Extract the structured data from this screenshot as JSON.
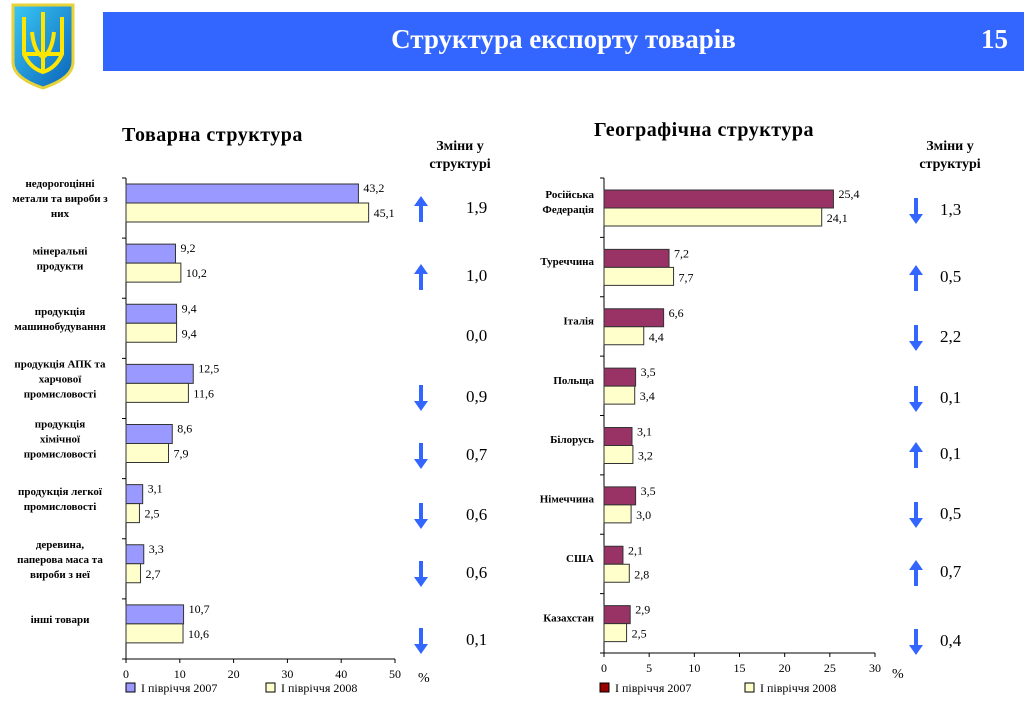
{
  "header": {
    "title": "Структура експорту товарів",
    "page_number": "15"
  },
  "change_header": "Зміни у структурі",
  "colors": {
    "banner": "#3366ff",
    "s2007_left": "#9999ff",
    "s2008": "#ffffcc",
    "s2007_right": "#993366",
    "legend_2007_right": "#990000",
    "arrow": "#3366ff"
  },
  "chart_data": [
    {
      "type": "bar",
      "orientation": "horizontal",
      "title": "Товарна структура",
      "xlabel": "%",
      "xlim": [
        0,
        50
      ],
      "xticks": [
        0,
        10,
        20,
        30,
        40,
        50
      ],
      "categories": [
        "недорогоцінні метали та вироби з них",
        "мінеральні продукти",
        "продукція машинобудування",
        "продукція АПК та харчової промисловості",
        "продукція хімічної промисловості",
        "продукція легкої промисловості",
        "деревина, паперова маса та вироби з неї",
        "інші товари"
      ],
      "series": [
        {
          "name": "І півріччя 2007",
          "values": [
            43.2,
            9.2,
            9.4,
            12.5,
            8.6,
            3.1,
            3.3,
            10.7
          ],
          "labels": [
            "43,2",
            "9,2",
            "9,4",
            "12,5",
            "8,6",
            "3,1",
            "3,3",
            "10,7"
          ]
        },
        {
          "name": "І півріччя 2008",
          "values": [
            45.1,
            10.2,
            9.4,
            11.6,
            7.9,
            2.5,
            2.7,
            10.6
          ],
          "labels": [
            "45,1",
            "10,2",
            "9,4",
            "11,6",
            "7,9",
            "2,5",
            "2,7",
            "10,6"
          ]
        }
      ],
      "changes": [
        {
          "dir": "up",
          "value": "1,9"
        },
        {
          "dir": "up",
          "value": "1,0"
        },
        {
          "dir": "none",
          "value": "0,0"
        },
        {
          "dir": "down",
          "value": "0,9"
        },
        {
          "dir": "down",
          "value": "0,7"
        },
        {
          "dir": "down",
          "value": "0,6"
        },
        {
          "dir": "down",
          "value": "0,6"
        },
        {
          "dir": "down",
          "value": "0,1"
        }
      ],
      "legend": "bottom"
    },
    {
      "type": "bar",
      "orientation": "horizontal",
      "title": "Географічна структура",
      "xlabel": "%",
      "xlim": [
        0,
        30
      ],
      "xticks": [
        0,
        5,
        10,
        15,
        20,
        25,
        30
      ],
      "categories": [
        "Російська Федерація",
        "Туреччина",
        "Італія",
        "Польща",
        "Білорусь",
        "Німеччина",
        "США",
        "Казахстан"
      ],
      "series": [
        {
          "name": "І півріччя 2007",
          "values": [
            25.4,
            7.2,
            6.6,
            3.5,
            3.1,
            3.5,
            2.1,
            2.9
          ],
          "labels": [
            "25,4",
            "7,2",
            "6,6",
            "3,5",
            "3,1",
            "3,5",
            "2,1",
            "2,9"
          ]
        },
        {
          "name": "І півріччя 2008",
          "values": [
            24.1,
            7.7,
            4.4,
            3.4,
            3.2,
            3.0,
            2.8,
            2.5
          ],
          "labels": [
            "24,1",
            "7,7",
            "4,4",
            "3,4",
            "3,2",
            "3,0",
            "2,8",
            "2,5"
          ]
        }
      ],
      "changes": [
        {
          "dir": "down",
          "value": "1,3"
        },
        {
          "dir": "up",
          "value": "0,5"
        },
        {
          "dir": "down",
          "value": "2,2"
        },
        {
          "dir": "down",
          "value": "0,1"
        },
        {
          "dir": "up",
          "value": "0,1"
        },
        {
          "dir": "down",
          "value": "0,5"
        },
        {
          "dir": "up",
          "value": "0,7"
        },
        {
          "dir": "down",
          "value": "0,4"
        }
      ],
      "legend": "bottom"
    }
  ]
}
